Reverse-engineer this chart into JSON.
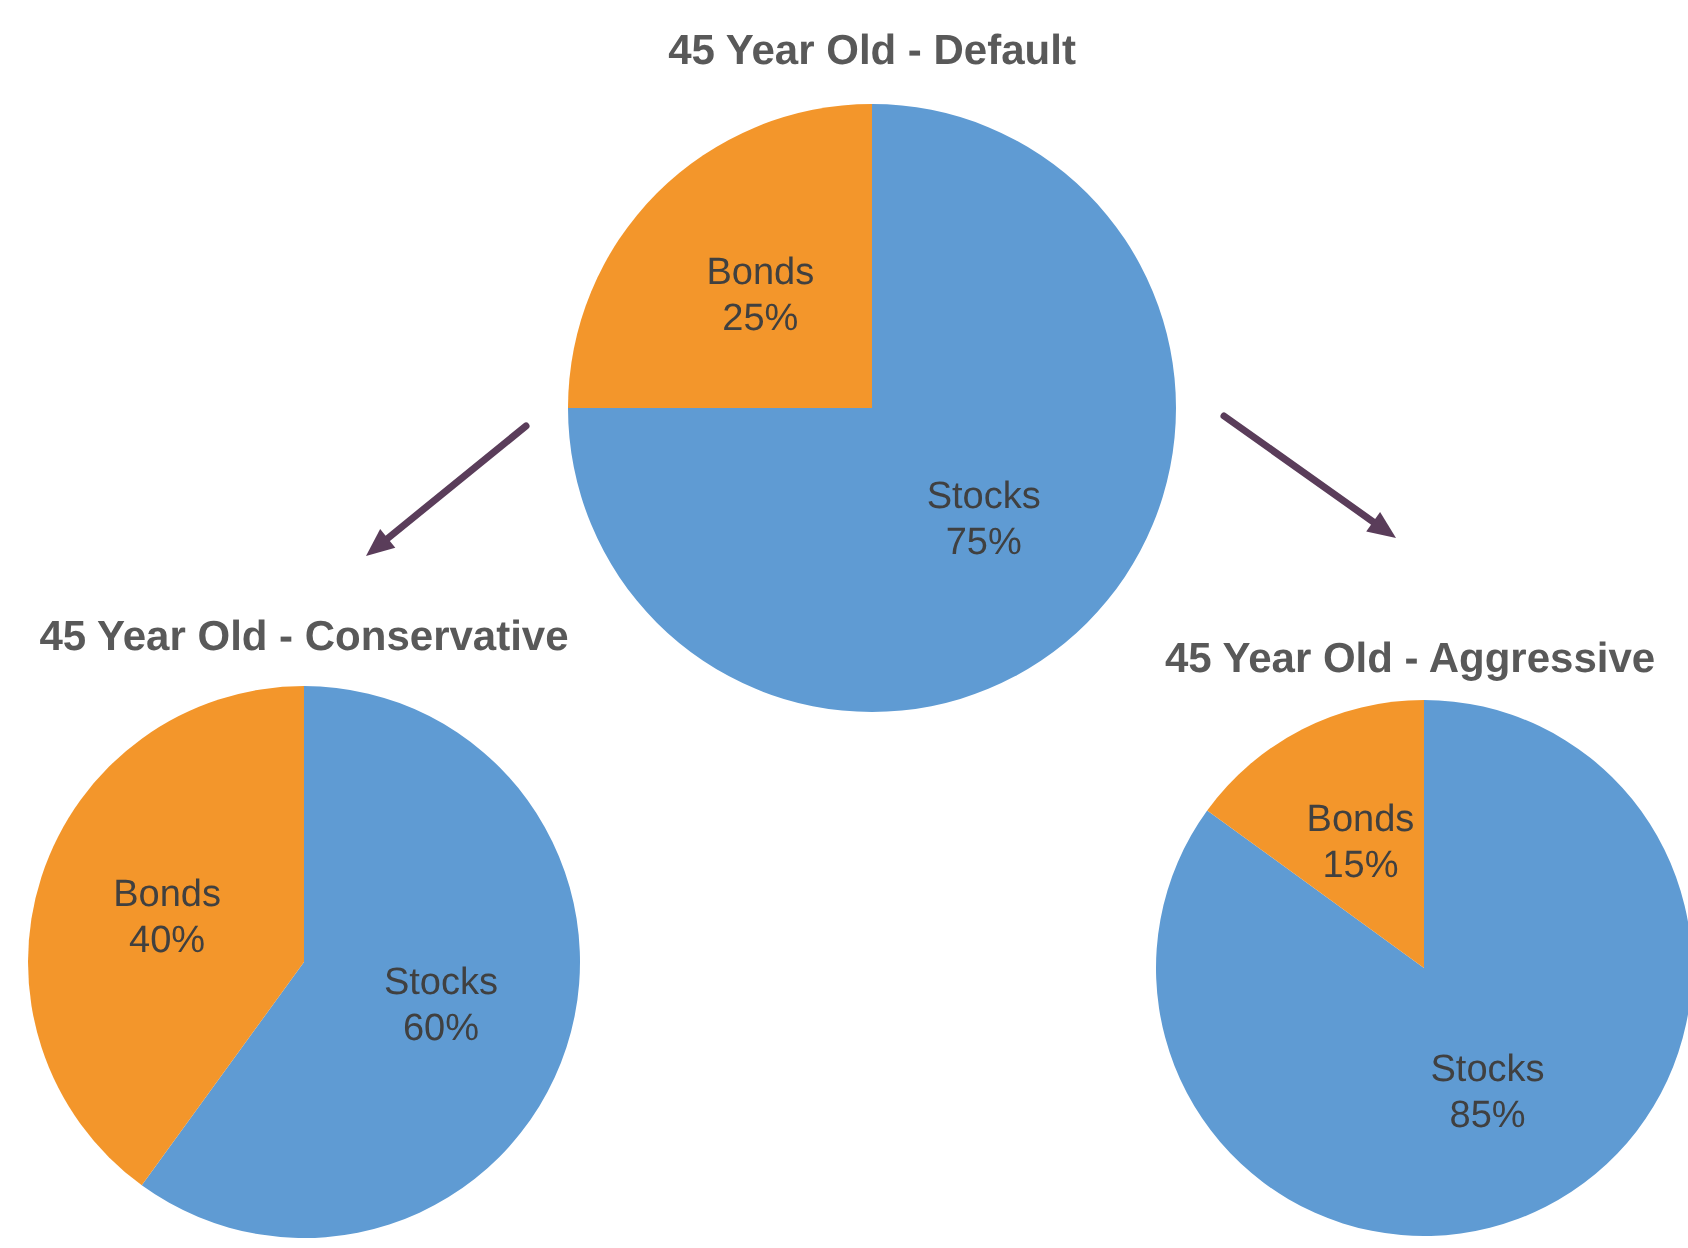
{
  "chart_data": [
    {
      "type": "pie",
      "title": "45 Year Old - Default",
      "categories": [
        "Stocks",
        "Bonds"
      ],
      "values": [
        75,
        25
      ],
      "colors": [
        "#5f9bd3",
        "#f3962b"
      ],
      "value_labels": [
        "75%",
        "25%"
      ]
    },
    {
      "type": "pie",
      "title": "45 Year Old - Conservative",
      "categories": [
        "Stocks",
        "Bonds"
      ],
      "values": [
        60,
        40
      ],
      "colors": [
        "#5f9bd3",
        "#f3962b"
      ],
      "value_labels": [
        "60%",
        "40%"
      ]
    },
    {
      "type": "pie",
      "title": "45 Year Old - Aggressive",
      "categories": [
        "Stocks",
        "Bonds"
      ],
      "values": [
        85,
        15
      ],
      "colors": [
        "#5f9bd3",
        "#f3962b"
      ],
      "value_labels": [
        "85%",
        "15%"
      ]
    }
  ]
}
